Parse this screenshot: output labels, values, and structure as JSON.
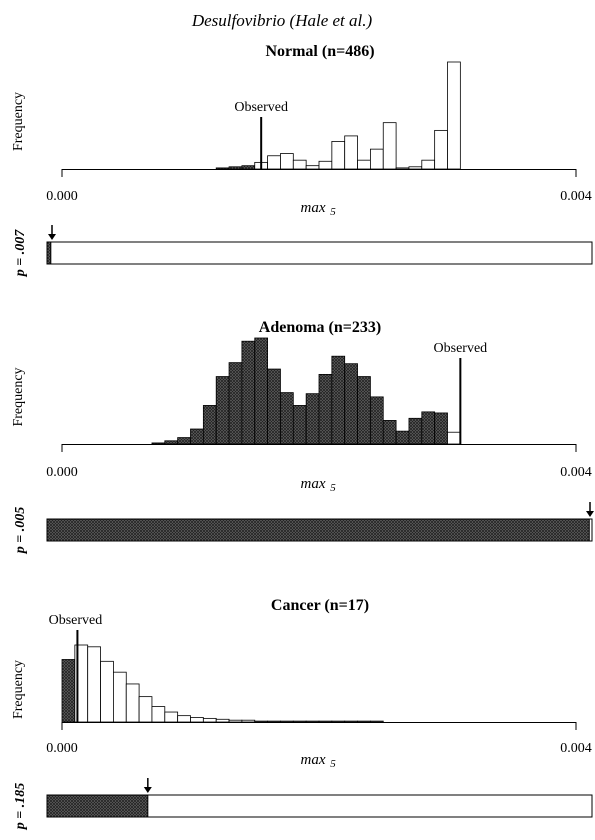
{
  "figure": {
    "title": "Desulfovibrio (Hale et al.)",
    "x_axis_label": "max",
    "x_axis_label_sub": "5",
    "y_axis_label": "Frequency",
    "observed_label": "Observed",
    "colors": {
      "filled": "#4a4a4a",
      "hatch": "#2a2a2a",
      "empty": "#ffffff",
      "stroke": "#000000"
    }
  },
  "chart_data": [
    {
      "type": "bar",
      "title": "Normal (n=486)",
      "xlabel": "max5",
      "ylabel": "Frequency",
      "xlim": [
        0.0,
        0.004
      ],
      "x_tick_labels": [
        "0.000",
        "0.004"
      ],
      "bin_width": 0.0001,
      "bins": [
        {
          "x0": 0.0012,
          "frequency": 1,
          "filled": true
        },
        {
          "x0": 0.0013,
          "frequency": 2,
          "filled": true
        },
        {
          "x0": 0.0014,
          "frequency": 3,
          "filled": true
        },
        {
          "x0": 0.0015,
          "frequency": 6,
          "filled": false
        },
        {
          "x0": 0.0016,
          "frequency": 12,
          "filled": false
        },
        {
          "x0": 0.0017,
          "frequency": 14,
          "filled": false
        },
        {
          "x0": 0.0018,
          "frequency": 8,
          "filled": false
        },
        {
          "x0": 0.0019,
          "frequency": 3,
          "filled": false
        },
        {
          "x0": 0.002,
          "frequency": 7,
          "filled": false
        },
        {
          "x0": 0.0021,
          "frequency": 25,
          "filled": false
        },
        {
          "x0": 0.0022,
          "frequency": 30,
          "filled": false
        },
        {
          "x0": 0.0023,
          "frequency": 8,
          "filled": false
        },
        {
          "x0": 0.0024,
          "frequency": 18,
          "filled": false
        },
        {
          "x0": 0.0025,
          "frequency": 42,
          "filled": false
        },
        {
          "x0": 0.0026,
          "frequency": 1,
          "filled": false
        },
        {
          "x0": 0.0027,
          "frequency": 2,
          "filled": false
        },
        {
          "x0": 0.0028,
          "frequency": 8,
          "filled": false
        },
        {
          "x0": 0.0029,
          "frequency": 35,
          "filled": false
        },
        {
          "x0": 0.003,
          "frequency": 97,
          "filled": false
        }
      ],
      "observed": 0.00155,
      "p_value_label": "p = .007",
      "p_value": 0.007,
      "observed_position": "left",
      "shading_side": "left"
    },
    {
      "type": "bar",
      "title": "Adenoma (n=233)",
      "xlabel": "max5",
      "ylabel": "Frequency",
      "xlim": [
        0.0,
        0.004
      ],
      "x_tick_labels": [
        "0.000",
        "0.004"
      ],
      "bin_width": 0.0001,
      "bins": [
        {
          "x0": 0.0007,
          "frequency": 1,
          "filled": true
        },
        {
          "x0": 0.0008,
          "frequency": 3,
          "filled": true
        },
        {
          "x0": 0.0009,
          "frequency": 6,
          "filled": true
        },
        {
          "x0": 0.001,
          "frequency": 14,
          "filled": true
        },
        {
          "x0": 0.0011,
          "frequency": 36,
          "filled": true
        },
        {
          "x0": 0.0012,
          "frequency": 63,
          "filled": true
        },
        {
          "x0": 0.0013,
          "frequency": 76,
          "filled": true
        },
        {
          "x0": 0.0014,
          "frequency": 96,
          "filled": true
        },
        {
          "x0": 0.0015,
          "frequency": 99,
          "filled": true
        },
        {
          "x0": 0.0016,
          "frequency": 70,
          "filled": true
        },
        {
          "x0": 0.0017,
          "frequency": 48,
          "filled": true
        },
        {
          "x0": 0.0018,
          "frequency": 36,
          "filled": true
        },
        {
          "x0": 0.0019,
          "frequency": 47,
          "filled": true
        },
        {
          "x0": 0.002,
          "frequency": 65,
          "filled": true
        },
        {
          "x0": 0.0021,
          "frequency": 82,
          "filled": true
        },
        {
          "x0": 0.0022,
          "frequency": 75,
          "filled": true
        },
        {
          "x0": 0.0023,
          "frequency": 63,
          "filled": true
        },
        {
          "x0": 0.0024,
          "frequency": 44,
          "filled": true
        },
        {
          "x0": 0.0025,
          "frequency": 22,
          "filled": true
        },
        {
          "x0": 0.0026,
          "frequency": 12,
          "filled": true
        },
        {
          "x0": 0.0027,
          "frequency": 24,
          "filled": true
        },
        {
          "x0": 0.0028,
          "frequency": 30,
          "filled": true
        },
        {
          "x0": 0.0029,
          "frequency": 29,
          "filled": true
        },
        {
          "x0": 0.003,
          "frequency": 11,
          "filled": false
        }
      ],
      "observed": 0.0031,
      "p_value_label": "p = .005",
      "p_value": 0.005,
      "observed_position": "right",
      "shading_side": "left"
    },
    {
      "type": "bar",
      "title": "Cancer (n=17)",
      "xlabel": "max5",
      "ylabel": "Frequency",
      "xlim": [
        0.0,
        0.004
      ],
      "x_tick_labels": [
        "0.000",
        "0.004"
      ],
      "bin_width": 0.0001,
      "bins": [
        {
          "x0": 0.0,
          "frequency": 69,
          "filled": true
        },
        {
          "x0": 0.0001,
          "frequency": 85,
          "filled": false
        },
        {
          "x0": 0.0002,
          "frequency": 83,
          "filled": false
        },
        {
          "x0": 0.0003,
          "frequency": 67,
          "filled": false
        },
        {
          "x0": 0.0004,
          "frequency": 55,
          "filled": false
        },
        {
          "x0": 0.0005,
          "frequency": 42,
          "filled": false
        },
        {
          "x0": 0.0006,
          "frequency": 28,
          "filled": false
        },
        {
          "x0": 0.0007,
          "frequency": 17,
          "filled": false
        },
        {
          "x0": 0.0008,
          "frequency": 11,
          "filled": false
        },
        {
          "x0": 0.0009,
          "frequency": 7,
          "filled": false
        },
        {
          "x0": 0.001,
          "frequency": 5,
          "filled": false
        },
        {
          "x0": 0.0011,
          "frequency": 4,
          "filled": false
        },
        {
          "x0": 0.0012,
          "frequency": 3,
          "filled": false
        },
        {
          "x0": 0.0013,
          "frequency": 2,
          "filled": false
        },
        {
          "x0": 0.0014,
          "frequency": 2,
          "filled": false
        },
        {
          "x0": 0.0015,
          "frequency": 1,
          "filled": false
        },
        {
          "x0": 0.0016,
          "frequency": 1,
          "filled": false
        },
        {
          "x0": 0.0017,
          "frequency": 1,
          "filled": false
        },
        {
          "x0": 0.0018,
          "frequency": 1,
          "filled": false
        },
        {
          "x0": 0.0019,
          "frequency": 1,
          "filled": false
        },
        {
          "x0": 0.002,
          "frequency": 1,
          "filled": false
        },
        {
          "x0": 0.0021,
          "frequency": 1,
          "filled": false
        },
        {
          "x0": 0.0022,
          "frequency": 1,
          "filled": false
        },
        {
          "x0": 0.0023,
          "frequency": 1,
          "filled": false
        },
        {
          "x0": 0.0024,
          "frequency": 1,
          "filled": false
        }
      ],
      "observed": 0.00012,
      "p_value_label": "p = .185",
      "p_value": 0.185,
      "observed_position": "left",
      "shading_side": "left"
    }
  ]
}
